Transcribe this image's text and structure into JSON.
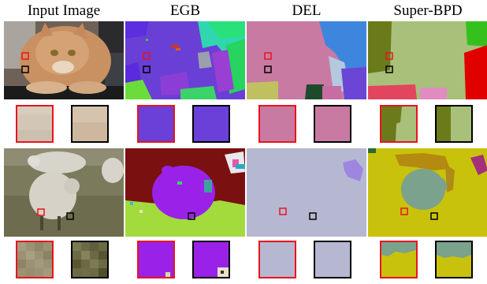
{
  "columns": [
    "Input Image",
    "EGB",
    "DEL",
    "Super-BPD"
  ],
  "colors": {
    "highlight_red": "#e8141c",
    "highlight_black": "#000000"
  }
}
